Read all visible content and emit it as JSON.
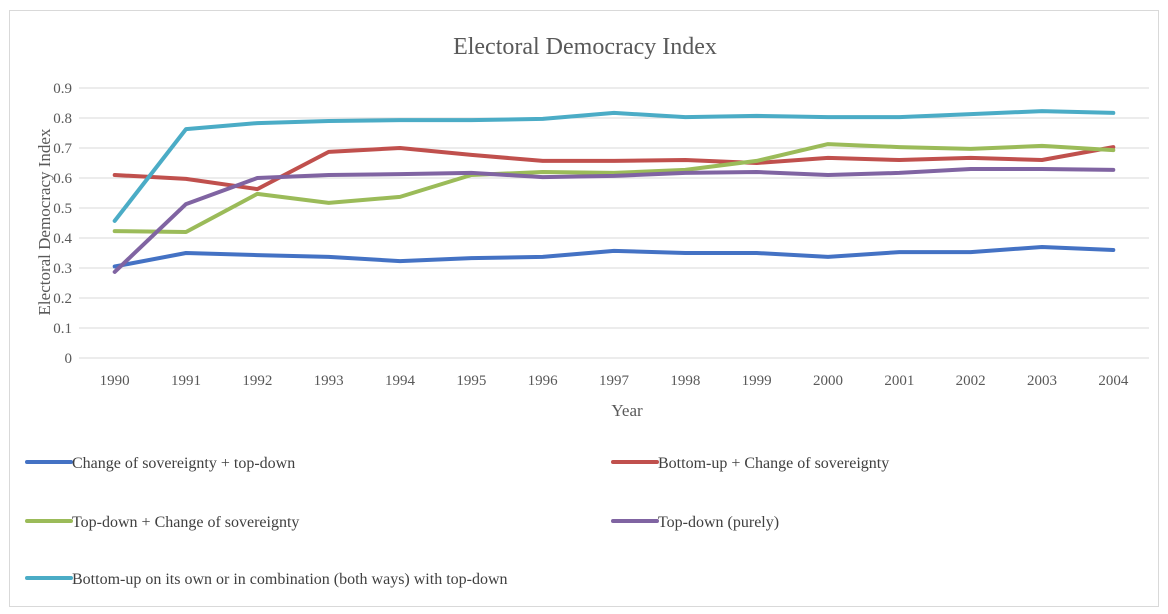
{
  "chart_data": {
    "type": "line",
    "title": "Electoral Democracy Index",
    "xlabel": "Year",
    "ylabel": "Electoral Democracy Index",
    "ylim": [
      0,
      0.9
    ],
    "y_ticks": [
      "0",
      "0.1",
      "0.2",
      "0.3",
      "0.4",
      "0.5",
      "0.6",
      "0.7",
      "0.8",
      "0.9"
    ],
    "grid": true,
    "legend_position": "bottom",
    "x": [
      "1990",
      "1991",
      "1992",
      "1993",
      "1994",
      "1995",
      "1996",
      "1997",
      "1998",
      "1999",
      "2000",
      "2001",
      "2002",
      "2003",
      "2004"
    ],
    "series": [
      {
        "name": "Change of sovereignty + top-down",
        "color": "#4472c4",
        "values": [
          0.305,
          0.35,
          0.343,
          0.337,
          0.323,
          0.333,
          0.337,
          0.357,
          0.35,
          0.35,
          0.337,
          0.353,
          0.353,
          0.37,
          0.36
        ]
      },
      {
        "name": "Bottom-up + Change of sovereignty",
        "color": "#c0504d",
        "values": [
          0.61,
          0.597,
          0.563,
          0.687,
          0.7,
          0.677,
          0.657,
          0.657,
          0.66,
          0.65,
          0.667,
          0.66,
          0.667,
          0.66,
          0.703
        ]
      },
      {
        "name": "Top-down + Change of sovereignty",
        "color": "#9bbb59",
        "values": [
          0.423,
          0.42,
          0.547,
          0.517,
          0.537,
          0.61,
          0.62,
          0.617,
          0.627,
          0.657,
          0.713,
          0.703,
          0.697,
          0.707,
          0.693
        ]
      },
      {
        "name": "Top-down (purely)",
        "color": "#8064a2",
        "values": [
          0.287,
          0.513,
          0.6,
          0.61,
          0.613,
          0.617,
          0.603,
          0.607,
          0.617,
          0.62,
          0.61,
          0.617,
          0.63,
          0.63,
          0.627
        ]
      },
      {
        "name": "Bottom-up on its own or in combination (both ways) with top-down",
        "color": "#4bacc6",
        "values": [
          0.457,
          0.763,
          0.783,
          0.79,
          0.793,
          0.793,
          0.797,
          0.817,
          0.803,
          0.807,
          0.803,
          0.803,
          0.813,
          0.823,
          0.817
        ]
      }
    ]
  }
}
